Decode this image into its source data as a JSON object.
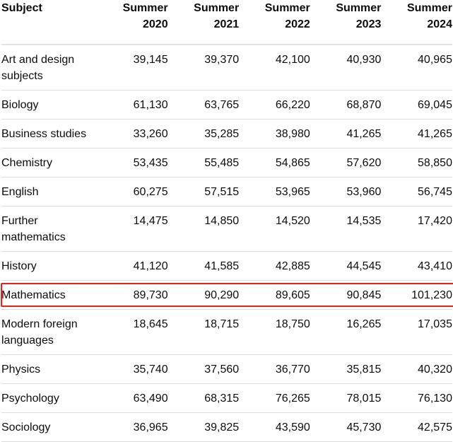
{
  "table": {
    "headers": [
      {
        "line1": "Subject",
        "line2": ""
      },
      {
        "line1": "Summer",
        "line2": "2020"
      },
      {
        "line1": "Summer",
        "line2": "2021"
      },
      {
        "line1": "Summer",
        "line2": "2022"
      },
      {
        "line1": "Summer",
        "line2": "2023"
      },
      {
        "line1": "Summer",
        "line2": "2024"
      }
    ],
    "rows": [
      {
        "subject": "Art and design subjects",
        "values": [
          "39,145",
          "39,370",
          "42,100",
          "40,930",
          "40,965"
        ]
      },
      {
        "subject": "Biology",
        "values": [
          "61,130",
          "63,765",
          "66,220",
          "68,870",
          "69,045"
        ]
      },
      {
        "subject": "Business studies",
        "values": [
          "33,260",
          "35,285",
          "38,980",
          "41,265",
          "41,265"
        ]
      },
      {
        "subject": "Chemistry",
        "values": [
          "53,435",
          "55,485",
          "54,865",
          "57,620",
          "58,850"
        ]
      },
      {
        "subject": "English",
        "values": [
          "60,275",
          "57,515",
          "53,965",
          "53,960",
          "56,745"
        ]
      },
      {
        "subject": "Further mathematics",
        "values": [
          "14,475",
          "14,850",
          "14,520",
          "14,535",
          "17,420"
        ]
      },
      {
        "subject": "History",
        "values": [
          "41,120",
          "41,585",
          "42,885",
          "44,545",
          "43,410"
        ]
      },
      {
        "subject": "Mathematics",
        "values": [
          "89,730",
          "90,290",
          "89,605",
          "90,845",
          "101,230"
        ],
        "highlighted": true
      },
      {
        "subject": "Modern foreign languages",
        "values": [
          "18,645",
          "18,715",
          "18,750",
          "16,265",
          "17,035"
        ]
      },
      {
        "subject": "Physics",
        "values": [
          "35,740",
          "37,560",
          "36,770",
          "35,815",
          "40,320"
        ]
      },
      {
        "subject": "Psychology",
        "values": [
          "63,490",
          "68,315",
          "76,265",
          "78,015",
          "76,130"
        ]
      },
      {
        "subject": "Sociology",
        "values": [
          "36,965",
          "39,825",
          "43,590",
          "45,730",
          "42,575"
        ]
      }
    ],
    "highlight_color": "#e8221b"
  }
}
